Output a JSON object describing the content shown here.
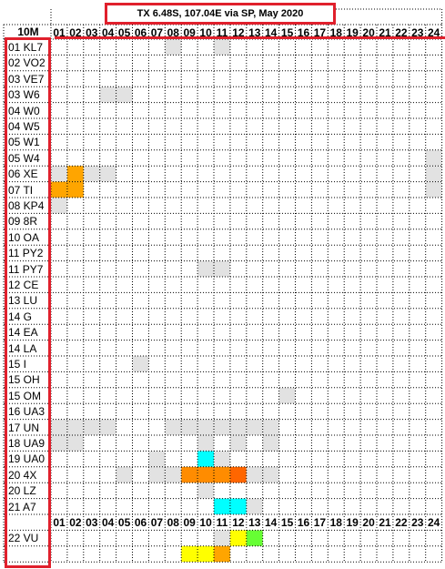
{
  "title": "TX 6.48S, 107.04E via SP, May 2020",
  "band": "10M",
  "hours": [
    "01",
    "02",
    "03",
    "04",
    "05",
    "06",
    "07",
    "08",
    "09",
    "10",
    "11",
    "12",
    "13",
    "14",
    "15",
    "16",
    "17",
    "18",
    "19",
    "20",
    "21",
    "22",
    "23",
    "24"
  ],
  "rows": [
    {
      "label": "01 KL7",
      "cells": {
        "8": "#e2e2e2",
        "11": "#e2e2e2"
      }
    },
    {
      "label": "02 VO2",
      "cells": {}
    },
    {
      "label": "03 VE7",
      "cells": {}
    },
    {
      "label": "03 W6",
      "cells": {
        "4": "#e2e2e2",
        "5": "#e2e2e2"
      }
    },
    {
      "label": "04 W0",
      "cells": {}
    },
    {
      "label": "04 W5",
      "cells": {}
    },
    {
      "label": "05 W1",
      "cells": {}
    },
    {
      "label": "05 W4",
      "cells": {
        "24": "#e2e2e2"
      }
    },
    {
      "label": "06 XE",
      "cells": {
        "1": "#e2e2e2",
        "2": "#ffa500",
        "3": "#e2e2e2",
        "4": "#e2e2e2",
        "24": "#e2e2e2"
      }
    },
    {
      "label": "07 TI",
      "cells": {
        "1": "#ffa500",
        "2": "#ffa500",
        "24": "#e2e2e2"
      }
    },
    {
      "label": "08 KP4",
      "cells": {
        "1": "#e2e2e2"
      }
    },
    {
      "label": "09 8R",
      "cells": {}
    },
    {
      "label": "10 OA",
      "cells": {}
    },
    {
      "label": "11 PY2",
      "cells": {}
    },
    {
      "label": "11 PY7",
      "cells": {
        "10": "#e2e2e2",
        "11": "#e2e2e2"
      }
    },
    {
      "label": "12 CE",
      "cells": {}
    },
    {
      "label": "13 LU",
      "cells": {}
    },
    {
      "label": "14 G",
      "cells": {}
    },
    {
      "label": "14 EA",
      "cells": {}
    },
    {
      "label": "14 LA",
      "cells": {}
    },
    {
      "label": "15 I",
      "cells": {
        "6": "#e2e2e2"
      }
    },
    {
      "label": "15 OH",
      "cells": {}
    },
    {
      "label": "15 OM",
      "cells": {
        "15": "#e2e2e2"
      }
    },
    {
      "label": "16 UA3",
      "cells": {}
    },
    {
      "label": "17 UN",
      "cells": {
        "1": "#e2e2e2",
        "2": "#e2e2e2",
        "3": "#e2e2e2",
        "4": "#e2e2e2",
        "8": "#e2e2e2",
        "9": "#e2e2e2",
        "10": "#e2e2e2",
        "11": "#e2e2e2",
        "12": "#e2e2e2",
        "13": "#e2e2e2",
        "14": "#e2e2e2"
      }
    },
    {
      "label": "18 UA9",
      "cells": {
        "1": "#e2e2e2",
        "2": "#e2e2e2",
        "10": "#e2e2e2",
        "12": "#e2e2e2",
        "14": "#e2e2e2"
      }
    },
    {
      "label": "19 UA0",
      "cells": {
        "7": "#e2e2e2",
        "10": "#00ffff",
        "11": "#e2e2e2"
      }
    },
    {
      "label": "20 4X",
      "cells": {
        "5": "#e2e2e2",
        "7": "#e2e2e2",
        "8": "#e2e2e2",
        "9": "#ff8c00",
        "10": "#ff8c00",
        "11": "#ff8c00",
        "12": "#ff6600",
        "13": "#e2e2e2",
        "14": "#e2e2e2"
      }
    },
    {
      "label": "20 LZ",
      "cells": {
        "10": "#e2e2e2"
      }
    },
    {
      "label": "21 A7",
      "cells": {
        "11": "#00ffff",
        "12": "#00ffff",
        "13": "#e2e2e2"
      }
    },
    {
      "label": "",
      "cells": {},
      "hour_header": true
    },
    {
      "label": "22 VU",
      "cells": {
        "11": "#e2e2e2",
        "12": "#ffff00",
        "13": "#66ff33"
      }
    },
    {
      "label": "",
      "cells": {
        "9": "#ffff00",
        "10": "#ffff00",
        "11": "#ffa500"
      }
    }
  ]
}
